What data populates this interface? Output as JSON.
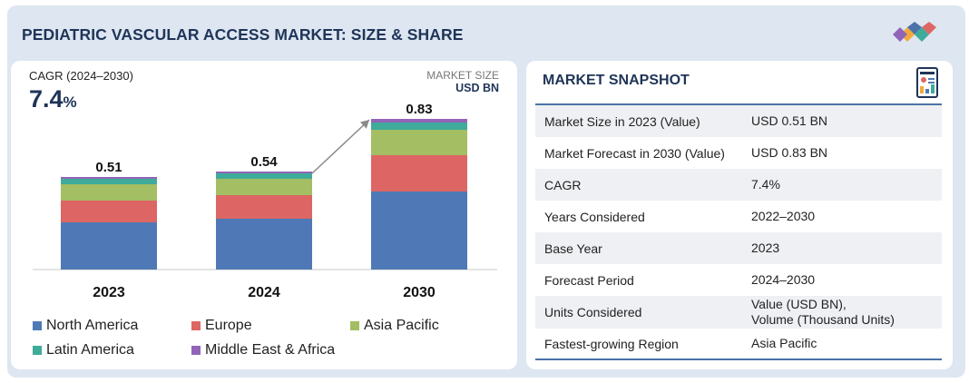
{
  "title": "PEDIATRIC VASCULAR ACCESS MARKET: SIZE & SHARE",
  "colors": {
    "north_america": "#4e79b6",
    "europe": "#dd6664",
    "asia_pacific": "#a3be63",
    "latin_america": "#3fab9a",
    "middle_east_africa": "#9264b8",
    "navy": "#1f3457"
  },
  "left": {
    "cagr_label": "CAGR (2024–2030)",
    "cagr_value": "7.4",
    "cagr_pct": "%",
    "market_size_label": "MARKET SIZE",
    "market_size_unit": "USD BN"
  },
  "chart_data": {
    "type": "bar",
    "stacked": true,
    "categories": [
      "2023",
      "2024",
      "2030"
    ],
    "totals": [
      0.51,
      0.54,
      0.83
    ],
    "total_labels": [
      "0.51",
      "0.54",
      "0.83"
    ],
    "series": [
      {
        "name": "North America",
        "values": [
          0.26,
          0.28,
          0.43
        ]
      },
      {
        "name": "Europe",
        "values": [
          0.12,
          0.13,
          0.2
        ]
      },
      {
        "name": "Asia Pacific",
        "values": [
          0.09,
          0.09,
          0.14
        ]
      },
      {
        "name": "Latin America",
        "values": [
          0.03,
          0.03,
          0.04
        ]
      },
      {
        "name": "Middle East & Africa",
        "values": [
          0.01,
          0.01,
          0.02
        ]
      }
    ],
    "ylim": [
      0,
      0.85
    ],
    "annotation": "growth arrow from 2024 to 2030"
  },
  "legend": [
    "North America",
    "Europe",
    "Asia Pacific",
    "Latin America",
    "Middle East & Africa"
  ],
  "snapshot": {
    "title": "MARKET SNAPSHOT",
    "rows": [
      {
        "label": "Market Size in 2023 (Value)",
        "value": "USD 0.51 BN"
      },
      {
        "label": "Market Forecast in 2030 (Value)",
        "value": "USD 0.83 BN"
      },
      {
        "label": "CAGR",
        "value": "7.4%"
      },
      {
        "label": "Years Considered",
        "value": "2022–2030"
      },
      {
        "label": "Base Year",
        "value": "2023"
      },
      {
        "label": "Forecast Period",
        "value": "2024–2030"
      },
      {
        "label": "Units Considered",
        "value": "Value (USD BN),",
        "value2": "Volume (Thousand Units)"
      },
      {
        "label": "Fastest-growing Region",
        "value": "Asia Pacific"
      }
    ]
  }
}
